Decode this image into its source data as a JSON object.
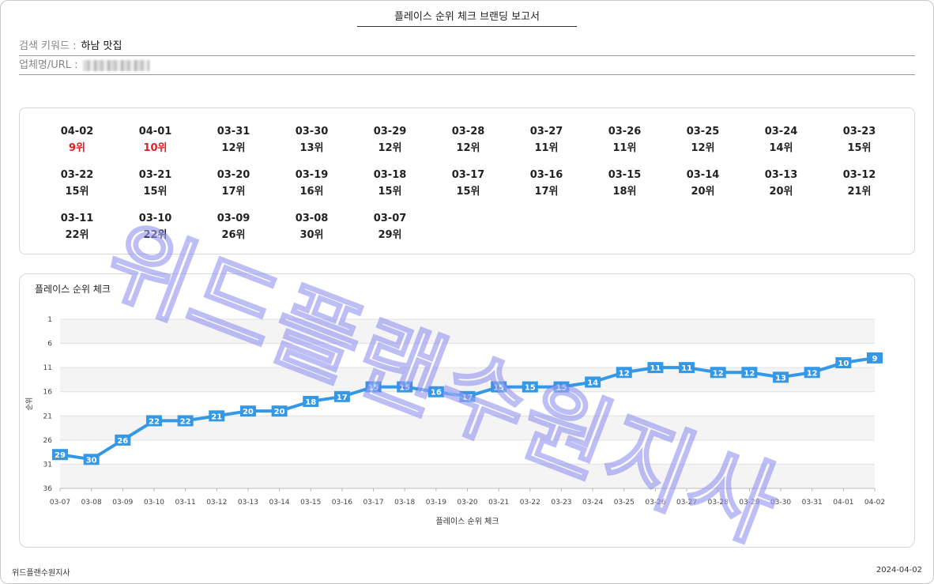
{
  "report": {
    "title": "플레이스 순위 체크 브랜딩 보고서",
    "keyword_label": "검색 키워드 :",
    "keyword_value": "하남 맛집",
    "business_label": "업체명/URL :",
    "business_value": ""
  },
  "daily_ranks": [
    {
      "date": "04-02",
      "rank": "9위",
      "highlight": true
    },
    {
      "date": "04-01",
      "rank": "10위",
      "highlight": true
    },
    {
      "date": "03-31",
      "rank": "12위",
      "highlight": false
    },
    {
      "date": "03-30",
      "rank": "13위",
      "highlight": false
    },
    {
      "date": "03-29",
      "rank": "12위",
      "highlight": false
    },
    {
      "date": "03-28",
      "rank": "12위",
      "highlight": false
    },
    {
      "date": "03-27",
      "rank": "11위",
      "highlight": false
    },
    {
      "date": "03-26",
      "rank": "11위",
      "highlight": false
    },
    {
      "date": "03-25",
      "rank": "12위",
      "highlight": false
    },
    {
      "date": "03-24",
      "rank": "14위",
      "highlight": false
    },
    {
      "date": "03-23",
      "rank": "15위",
      "highlight": false
    },
    {
      "date": "03-22",
      "rank": "15위",
      "highlight": false
    },
    {
      "date": "03-21",
      "rank": "15위",
      "highlight": false
    },
    {
      "date": "03-20",
      "rank": "17위",
      "highlight": false
    },
    {
      "date": "03-19",
      "rank": "16위",
      "highlight": false
    },
    {
      "date": "03-18",
      "rank": "15위",
      "highlight": false
    },
    {
      "date": "03-17",
      "rank": "15위",
      "highlight": false
    },
    {
      "date": "03-16",
      "rank": "17위",
      "highlight": false
    },
    {
      "date": "03-15",
      "rank": "18위",
      "highlight": false
    },
    {
      "date": "03-14",
      "rank": "20위",
      "highlight": false
    },
    {
      "date": "03-13",
      "rank": "20위",
      "highlight": false
    },
    {
      "date": "03-12",
      "rank": "21위",
      "highlight": false
    },
    {
      "date": "03-11",
      "rank": "22위",
      "highlight": false
    },
    {
      "date": "03-10",
      "rank": "22위",
      "highlight": false
    },
    {
      "date": "03-09",
      "rank": "26위",
      "highlight": false
    },
    {
      "date": "03-08",
      "rank": "30위",
      "highlight": false
    },
    {
      "date": "03-07",
      "rank": "29위",
      "highlight": false
    }
  ],
  "chart_data": {
    "type": "line",
    "title": "플레이스 순위 체크",
    "xlabel": "플레이스 순위 체크",
    "ylabel": "순위",
    "y_reversed": true,
    "ylim": [
      1,
      36
    ],
    "y_ticks": [
      1,
      6,
      11,
      16,
      21,
      26,
      31,
      36
    ],
    "categories": [
      "03-07",
      "03-08",
      "03-09",
      "03-10",
      "03-11",
      "03-12",
      "03-13",
      "03-14",
      "03-15",
      "03-16",
      "03-17",
      "03-18",
      "03-19",
      "03-20",
      "03-21",
      "03-22",
      "03-23",
      "03-24",
      "03-25",
      "03-26",
      "03-27",
      "03-28",
      "03-29",
      "03-30",
      "03-31",
      "04-01",
      "04-02"
    ],
    "series": [
      {
        "name": "순위",
        "values": [
          29,
          30,
          26,
          22,
          22,
          21,
          20,
          20,
          18,
          17,
          15,
          15,
          16,
          17,
          15,
          15,
          15,
          14,
          12,
          11,
          11,
          12,
          12,
          13,
          12,
          10,
          9
        ]
      }
    ],
    "line_color": "#3498e6",
    "grid": true,
    "data_labels": true
  },
  "watermark": "위드플랜수원지사",
  "footer": {
    "company": "위드플랜수원지사",
    "date": "2024-04-02"
  }
}
